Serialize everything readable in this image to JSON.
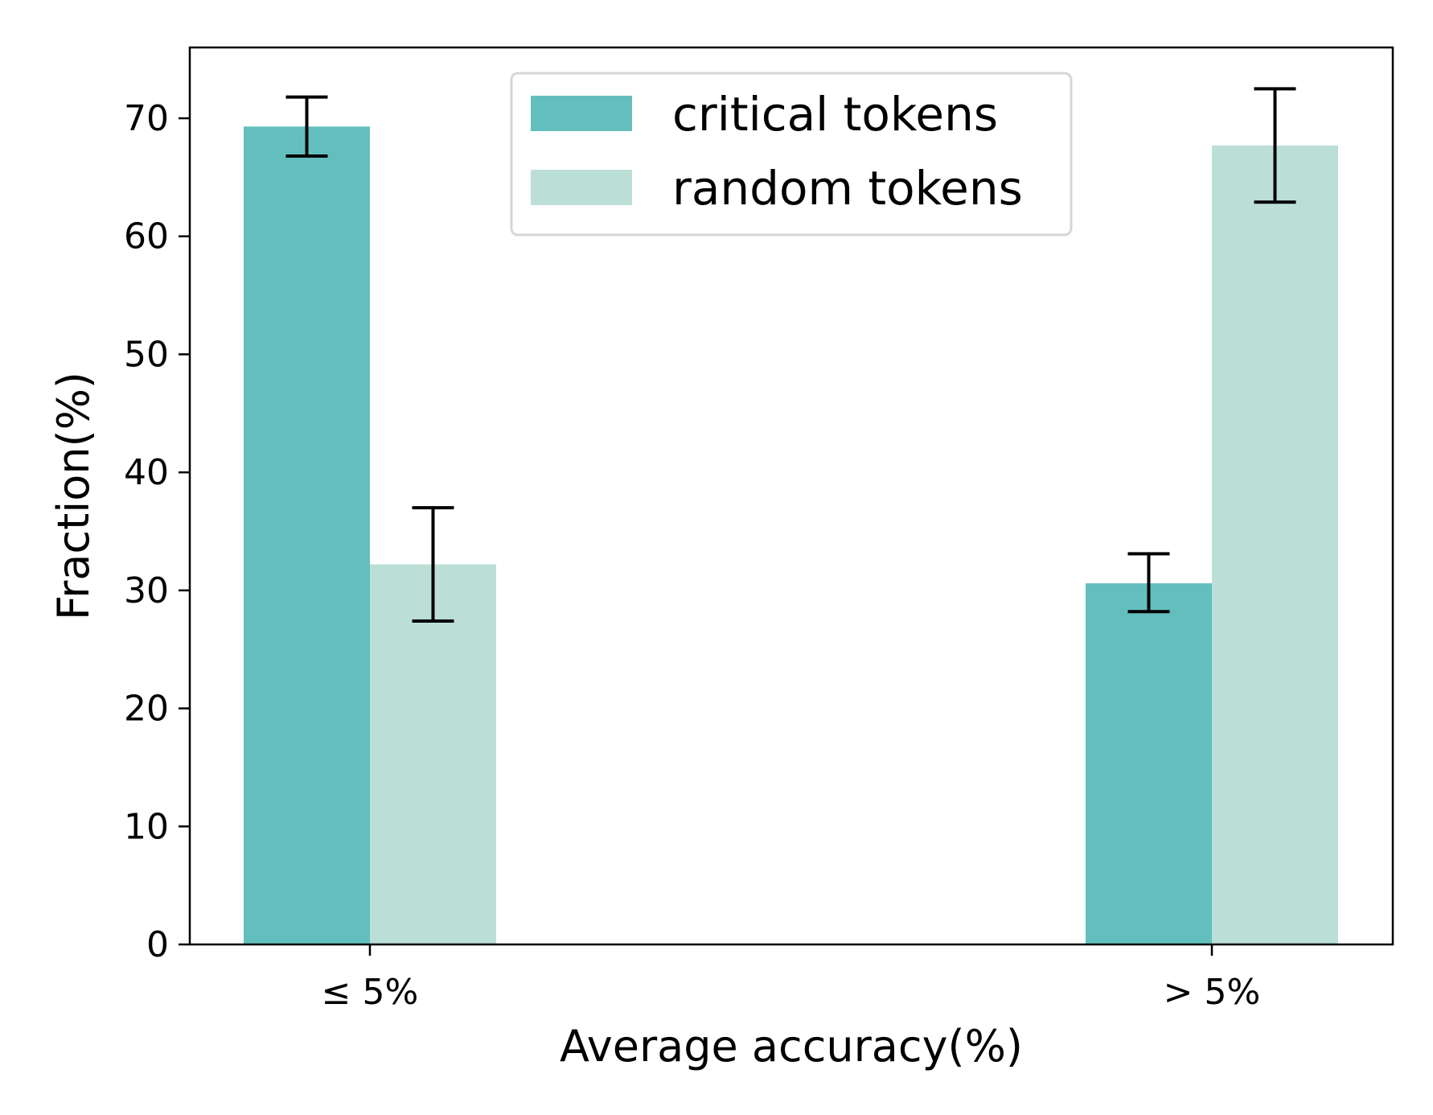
{
  "chart_data": {
    "type": "bar",
    "title": "",
    "xlabel": "Average accuracy(%)",
    "ylabel": "Fraction(%)",
    "ylim": [
      0,
      76
    ],
    "yticks": [
      0,
      10,
      20,
      30,
      40,
      50,
      60,
      70
    ],
    "categories": [
      "≤ 5%",
      "> 5%"
    ],
    "series": [
      {
        "name": "critical tokens",
        "color": "#63bfbe",
        "values": [
          69.3,
          30.6
        ],
        "error_low": [
          66.8,
          28.2
        ],
        "error_high": [
          71.8,
          33.1
        ]
      },
      {
        "name": "random tokens",
        "color": "#bbdfd7",
        "values": [
          32.2,
          67.7
        ],
        "error_low": [
          27.4,
          62.9
        ],
        "error_high": [
          37.0,
          72.5
        ]
      }
    ],
    "legend_position": "top-center",
    "grid": false
  }
}
